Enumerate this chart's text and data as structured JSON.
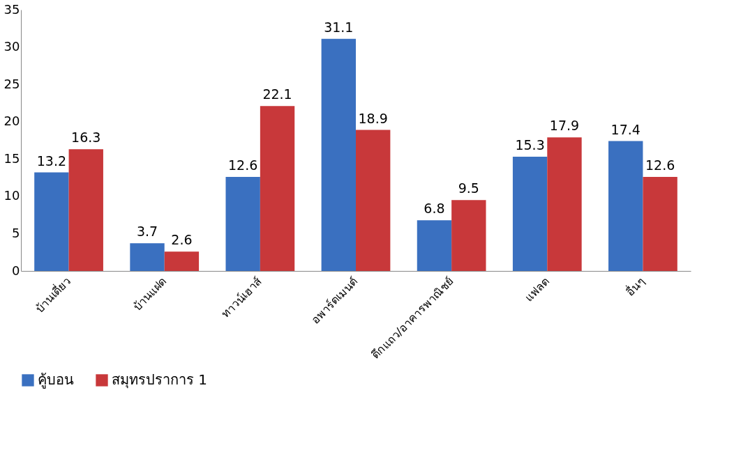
{
  "chart_data": {
    "type": "bar",
    "categories": [
      "บ้านเดี่ยว",
      "บ้านแฝด",
      "ทาวน์เฮาส์",
      "อพาร์ตเมนต์",
      "ตึกแถว/อาคารพาณิชย์",
      "แฟลต",
      "อื่นๆ"
    ],
    "series": [
      {
        "name": "คู้บอน",
        "color": "#3a70c0",
        "values": [
          13.2,
          3.7,
          12.6,
          31.1,
          6.8,
          15.3,
          17.4
        ]
      },
      {
        "name": "สมุทรปราการ 1",
        "color": "#c8383a",
        "values": [
          16.3,
          2.6,
          22.1,
          18.9,
          9.5,
          17.9,
          12.6
        ]
      }
    ],
    "ylim": [
      0,
      35
    ],
    "yticks": [
      0,
      5,
      10,
      15,
      20,
      25,
      30,
      35
    ],
    "grid": false,
    "legend": "bottom",
    "data_labels": true
  }
}
